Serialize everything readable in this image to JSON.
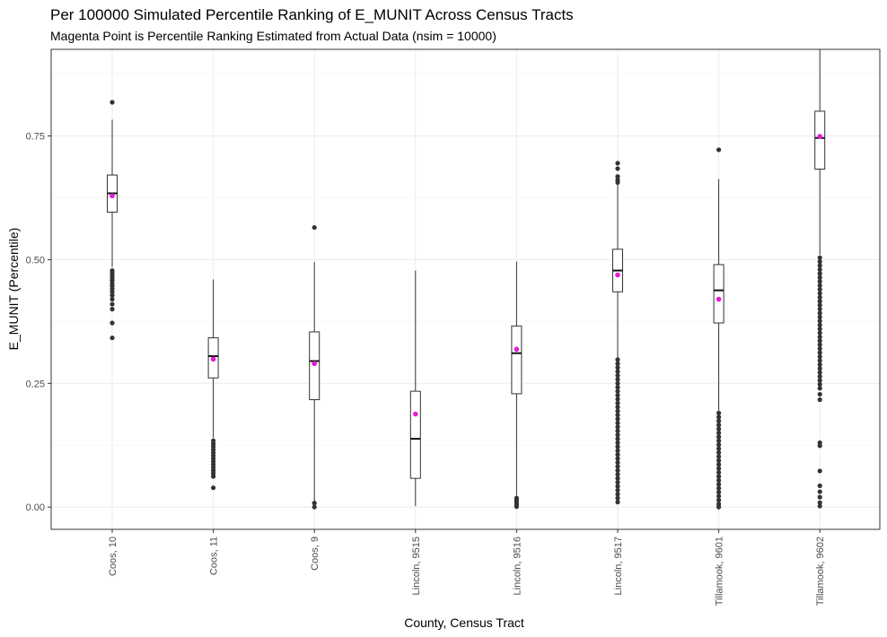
{
  "chart_data": {
    "type": "boxplot",
    "title": "Per 100000 Simulated Percentile Ranking of E_MUNIT Across Census Tracts",
    "subtitle": "Magenta Point is Percentile Ranking Estimated from Actual Data (nsim = 10000)",
    "xlabel": "County, Census Tract",
    "ylabel": "E_MUNIT (Percentile)",
    "ylim": [
      -0.045,
      0.925
    ],
    "y_ticks": [
      0.0,
      0.25,
      0.5,
      0.75
    ],
    "y_tick_labels": [
      "0.00",
      "0.25",
      "0.50",
      "0.75"
    ],
    "grid": true,
    "categories": [
      "Coos, 10",
      "Coos, 11",
      "Coos, 9",
      "Lincoln, 9515",
      "Lincoln, 9516",
      "Lincoln, 9517",
      "Tillamook, 9601",
      "Tillamook, 9602"
    ],
    "boxes": [
      {
        "whisker_low": 0.485,
        "q1": 0.596,
        "median": 0.634,
        "q3": 0.671,
        "whisker_high": 0.783,
        "actual": 0.629,
        "outliers": [
          0.818,
          0.478,
          0.473,
          0.468,
          0.463,
          0.458,
          0.452,
          0.447,
          0.441,
          0.435,
          0.428,
          0.42,
          0.41,
          0.4,
          0.372,
          0.342
        ]
      },
      {
        "whisker_low": 0.14,
        "q1": 0.261,
        "median": 0.305,
        "q3": 0.342,
        "whisker_high": 0.46,
        "actual": 0.299,
        "outliers": [
          0.134,
          0.128,
          0.122,
          0.116,
          0.11,
          0.104,
          0.098,
          0.092,
          0.086,
          0.08,
          0.074,
          0.068,
          0.062,
          0.039
        ]
      },
      {
        "whisker_low": 0.012,
        "q1": 0.217,
        "median": 0.295,
        "q3": 0.354,
        "whisker_high": 0.495,
        "actual": 0.29,
        "outliers": [
          0.565,
          0.008,
          0.0
        ]
      },
      {
        "whisker_low": 0.002,
        "q1": 0.058,
        "median": 0.138,
        "q3": 0.234,
        "whisker_high": 0.478,
        "actual": 0.188,
        "outliers": []
      },
      {
        "whisker_low": 0.022,
        "q1": 0.229,
        "median": 0.311,
        "q3": 0.366,
        "whisker_high": 0.496,
        "actual": 0.319,
        "outliers": [
          0.018,
          0.013,
          0.009,
          0.005,
          0.001
        ]
      },
      {
        "whisker_low": 0.302,
        "q1": 0.435,
        "median": 0.478,
        "q3": 0.521,
        "whisker_high": 0.652,
        "actual": 0.469,
        "outliers": [
          0.695,
          0.684,
          0.668,
          0.661,
          0.656,
          0.298,
          0.29,
          0.282,
          0.274,
          0.266,
          0.258,
          0.25,
          0.242,
          0.234,
          0.226,
          0.218,
          0.21,
          0.202,
          0.194,
          0.186,
          0.178,
          0.17,
          0.162,
          0.154,
          0.146,
          0.138,
          0.13,
          0.122,
          0.114,
          0.106,
          0.098,
          0.09,
          0.082,
          0.074,
          0.066,
          0.058,
          0.05,
          0.042,
          0.034,
          0.026,
          0.018,
          0.01
        ]
      },
      {
        "whisker_low": 0.195,
        "q1": 0.372,
        "median": 0.438,
        "q3": 0.49,
        "whisker_high": 0.663,
        "actual": 0.42,
        "outliers": [
          0.722,
          0.19,
          0.182,
          0.174,
          0.166,
          0.158,
          0.15,
          0.142,
          0.134,
          0.126,
          0.118,
          0.11,
          0.102,
          0.094,
          0.086,
          0.078,
          0.07,
          0.062,
          0.054,
          0.046,
          0.038,
          0.03,
          0.022,
          0.014,
          0.006,
          0.0
        ]
      },
      {
        "whisker_low": 0.51,
        "q1": 0.683,
        "median": 0.746,
        "q3": 0.8,
        "whisker_high": 0.925,
        "actual": 0.749,
        "outliers": [
          0.504,
          0.496,
          0.488,
          0.48,
          0.472,
          0.464,
          0.456,
          0.448,
          0.44,
          0.432,
          0.424,
          0.416,
          0.408,
          0.4,
          0.392,
          0.384,
          0.376,
          0.368,
          0.36,
          0.352,
          0.344,
          0.336,
          0.328,
          0.32,
          0.312,
          0.304,
          0.296,
          0.288,
          0.28,
          0.272,
          0.264,
          0.256,
          0.248,
          0.24,
          0.228,
          0.217,
          0.13,
          0.124,
          0.073,
          0.043,
          0.031,
          0.02,
          0.009,
          0.002
        ]
      }
    ]
  }
}
